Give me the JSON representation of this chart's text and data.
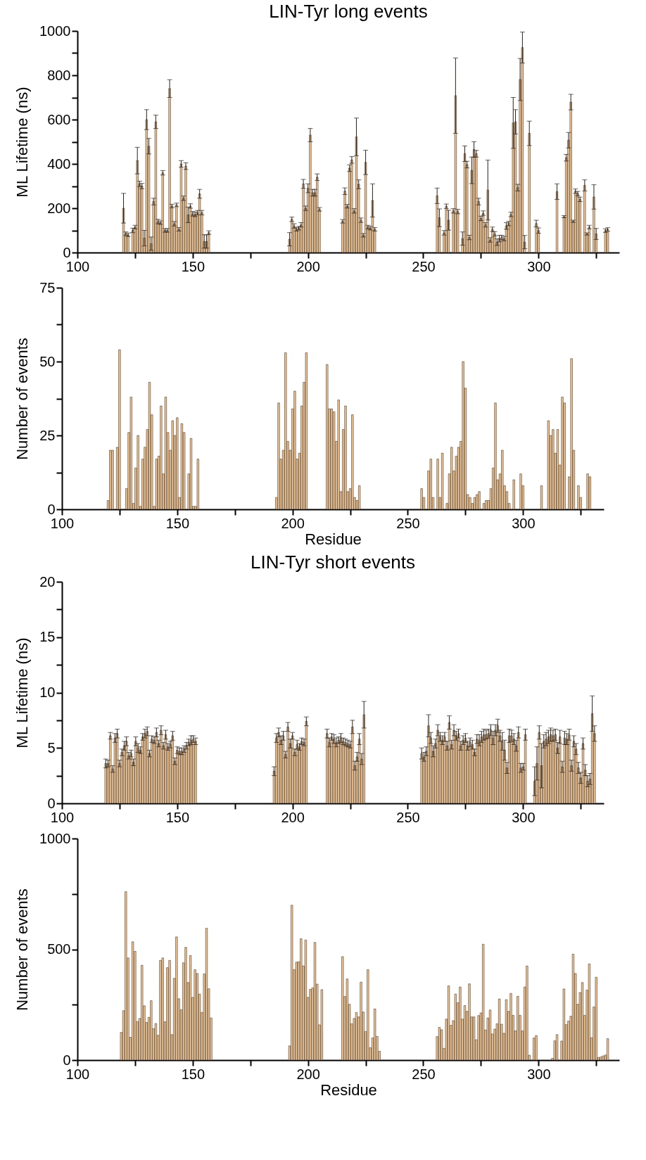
{
  "chart_data": [
    {
      "type": "bar",
      "title": "LIN-Tyr long events",
      "ylabel": "ML Lifetime (ns)",
      "color": "#f6c58e",
      "x": [
        120,
        121,
        122,
        124,
        125,
        126,
        127,
        128,
        129,
        130,
        131,
        132,
        133,
        134,
        135,
        136,
        137,
        138,
        139,
        140,
        141,
        142,
        143,
        144,
        145,
        146,
        147,
        148,
        149,
        150,
        151,
        152,
        153,
        154,
        155,
        156,
        157,
        192,
        193,
        194,
        195,
        196,
        197,
        198,
        199,
        200,
        201,
        202,
        203,
        204,
        205,
        215,
        216,
        217,
        218,
        219,
        220,
        221,
        222,
        223,
        224,
        225,
        226,
        227,
        228,
        229,
        256,
        257,
        259,
        260,
        261,
        263,
        264,
        265,
        267,
        268,
        269,
        270,
        271,
        272,
        273,
        274,
        275,
        276,
        277,
        278,
        279,
        280,
        281,
        282,
        283,
        284,
        285,
        286,
        287,
        288,
        289,
        290,
        291,
        292,
        293,
        294,
        296,
        299,
        300,
        308,
        311,
        312,
        313,
        314,
        315,
        316,
        317,
        318,
        320,
        321,
        322,
        324,
        325,
        329,
        330
      ],
      "values": [
        200,
        85,
        80,
        100,
        115,
        415,
        310,
        300,
        65,
        600,
        480,
        40,
        230,
        590,
        140,
        135,
        360,
        100,
        100,
        740,
        210,
        130,
        215,
        105,
        400,
        245,
        390,
        170,
        210,
        175,
        172,
        180,
        265,
        180,
        50,
        50,
        90,
        60,
        150,
        120,
        105,
        110,
        125,
        310,
        200,
        290,
        530,
        270,
        270,
        340,
        195,
        141,
        277,
        209,
        381,
        418,
        188,
        522,
        308,
        146,
        78,
        407,
        115,
        110,
        235,
        105,
        256,
        157,
        89,
        209,
        146,
        188,
        708,
        185,
        63,
        446,
        397,
        68,
        371,
        465,
        446,
        230,
        154,
        178,
        125,
        282,
        57,
        105,
        84,
        47,
        63,
        68,
        63,
        120,
        131,
        172,
        585,
        590,
        293,
        781,
        925,
        47,
        538,
        131,
        99,
        275,
        162,
        428,
        507,
        679,
        141,
        277,
        266,
        240,
        303,
        84,
        115,
        251,
        84,
        99,
        104
      ],
      "errors": [
        67,
        8,
        8,
        10,
        8,
        60,
        12,
        12,
        35,
        45,
        35,
        30,
        15,
        30,
        10,
        8,
        10,
        8,
        8,
        40,
        8,
        10,
        8,
        8,
        15,
        10,
        15,
        35,
        10,
        10,
        10,
        10,
        20,
        10,
        30,
        30,
        8,
        30,
        10,
        10,
        8,
        8,
        10,
        20,
        10,
        20,
        30,
        15,
        15,
        15,
        8,
        8,
        15,
        8,
        15,
        15,
        10,
        85,
        20,
        10,
        8,
        55,
        8,
        8,
        75,
        8,
        35,
        40,
        10,
        10,
        45,
        10,
        170,
        10,
        30,
        35,
        15,
        10,
        60,
        35,
        15,
        15,
        10,
        10,
        10,
        135,
        10,
        10,
        10,
        15,
        15,
        10,
        10,
        15,
        10,
        10,
        115,
        55,
        15,
        95,
        70,
        30,
        55,
        15,
        12,
        35,
        5,
        15,
        35,
        35,
        5,
        10,
        10,
        10,
        25,
        5,
        8,
        55,
        25,
        8,
        8
      ],
      "xlim": [
        100,
        335
      ],
      "xticks": [
        100,
        {
          "value": 125,
          "label": null
        },
        150,
        {
          "value": 175,
          "label": null
        },
        200,
        {
          "value": 225,
          "label": null
        },
        250,
        {
          "value": 275,
          "label": null
        },
        300,
        {
          "value": 325,
          "label": null
        }
      ],
      "ylim": [
        0,
        1000
      ],
      "yticks": [
        0,
        {
          "value": 100,
          "label": null
        },
        200,
        {
          "value": 300,
          "label": null
        },
        400,
        {
          "value": 500,
          "label": null
        },
        600,
        {
          "value": 700,
          "label": null
        },
        800,
        {
          "value": 900,
          "label": null
        },
        1000
      ]
    },
    {
      "type": "bar",
      "xlabel": "Residue",
      "ylabel": "Number of events",
      "color": "#f6c58e",
      "x": [
        120,
        121,
        122,
        124,
        125,
        128,
        129,
        130,
        131,
        132,
        133,
        134,
        135,
        136,
        137,
        138,
        139,
        140,
        141,
        142,
        143,
        144,
        145,
        146,
        147,
        148,
        149,
        150,
        151,
        152,
        153,
        155,
        156,
        157,
        158,
        159,
        193,
        194,
        195,
        196,
        197,
        198,
        199,
        200,
        201,
        202,
        203,
        204,
        205,
        206,
        215,
        216,
        217,
        218,
        219,
        220,
        221,
        222,
        223,
        224,
        225,
        226,
        227,
        228,
        229,
        256,
        257,
        259,
        260,
        261,
        263,
        264,
        265,
        267,
        268,
        269,
        270,
        271,
        272,
        273,
        274,
        275,
        276,
        277,
        278,
        279,
        280,
        281,
        283,
        284,
        285,
        286,
        287,
        288,
        289,
        290,
        291,
        292,
        293,
        294,
        296,
        299,
        300,
        308,
        311,
        312,
        313,
        314,
        315,
        316,
        317,
        318,
        320,
        321,
        322,
        324,
        325,
        328,
        329
      ],
      "values": [
        3,
        20,
        20,
        21,
        54,
        7,
        26,
        38,
        2,
        14,
        25,
        1,
        17,
        21,
        27,
        43,
        32,
        1,
        17,
        18,
        35,
        12,
        38,
        26,
        20,
        30,
        25,
        31,
        4,
        29,
        26,
        12,
        24,
        1,
        1,
        17,
        4,
        36,
        17,
        20,
        53,
        23,
        20,
        34,
        40,
        17,
        19,
        35,
        43,
        53,
        49,
        34,
        34,
        33,
        23,
        37,
        6,
        27,
        35,
        6,
        7,
        32,
        4,
        3,
        8,
        7,
        4,
        13,
        17,
        4,
        17,
        4,
        19,
        2,
        12,
        21,
        13,
        18,
        21,
        23,
        50,
        41,
        5,
        4,
        2,
        4,
        5,
        6,
        2,
        3,
        3,
        7,
        14,
        36,
        10,
        12,
        20,
        8,
        6,
        2,
        10,
        12,
        8,
        8,
        30,
        25,
        27,
        19,
        27,
        15,
        38,
        36,
        11,
        51,
        20,
        8,
        4,
        12,
        11
      ],
      "xlim": [
        100,
        335
      ],
      "xticks": [
        100,
        {
          "value": 125,
          "label": null
        },
        150,
        {
          "value": 175,
          "label": null
        },
        200,
        {
          "value": 225,
          "label": null
        },
        250,
        {
          "value": 275,
          "label": null
        },
        300,
        {
          "value": 325,
          "label": null
        }
      ],
      "ylim": [
        0,
        75
      ],
      "yticks": [
        0,
        {
          "value": 12.5,
          "label": null
        },
        25,
        {
          "value": 37.5,
          "label": null
        },
        50,
        {
          "value": 62.5,
          "label": null
        },
        75
      ]
    },
    {
      "type": "bar",
      "title": "LIN-Tyr short events",
      "ylabel": "ML Lifetime (ns)",
      "color": "#f6c58e",
      "x": [
        119,
        120,
        121,
        122,
        123,
        124,
        125,
        126,
        127,
        128,
        129,
        130,
        131,
        132,
        133,
        134,
        135,
        136,
        137,
        138,
        139,
        140,
        141,
        142,
        143,
        144,
        145,
        146,
        147,
        148,
        149,
        150,
        151,
        152,
        153,
        154,
        155,
        156,
        157,
        158,
        192,
        193,
        194,
        195,
        196,
        197,
        198,
        199,
        200,
        201,
        202,
        203,
        204,
        205,
        206,
        215,
        216,
        217,
        218,
        219,
        220,
        221,
        222,
        223,
        224,
        225,
        226,
        227,
        228,
        229,
        230,
        231,
        256,
        257,
        258,
        259,
        260,
        261,
        262,
        263,
        264,
        265,
        266,
        267,
        268,
        269,
        270,
        271,
        272,
        273,
        274,
        275,
        276,
        277,
        278,
        279,
        280,
        281,
        282,
        283,
        284,
        285,
        286,
        287,
        288,
        289,
        290,
        291,
        292,
        293,
        294,
        295,
        296,
        297,
        298,
        299,
        300,
        301,
        305,
        306,
        307,
        308,
        309,
        310,
        311,
        312,
        313,
        314,
        315,
        316,
        317,
        318,
        319,
        320,
        321,
        322,
        323,
        324,
        325,
        326,
        327,
        328,
        329,
        330,
        331
      ],
      "values": [
        3.6,
        3.6,
        6.1,
        3.1,
        5.9,
        6.3,
        3.6,
        4.6,
        5.2,
        5.6,
        4.3,
        4.5,
        3.7,
        5.6,
        5,
        4.8,
        6,
        6.3,
        6.5,
        4.5,
        5.8,
        5.7,
        6.4,
        5.4,
        6.6,
        5.2,
        6.2,
        5.1,
        5.3,
        6.1,
        3.8,
        4.8,
        4.7,
        4.7,
        4.9,
        5.2,
        5.5,
        5.7,
        5.8,
        5.6,
        2.9,
        5.9,
        6.4,
        5.7,
        6.1,
        4.4,
        6.9,
        5.4,
        6.1,
        4.6,
        5.3,
        5.1,
        5.6,
        5.5,
        7.4,
        6.3,
        5.5,
        6,
        5.8,
        5.5,
        5.7,
        5.9,
        5.6,
        5.5,
        5.4,
        5.3,
        6.9,
        3.4,
        4.2,
        5.8,
        4,
        8,
        4.5,
        4.2,
        4.7,
        7,
        5.9,
        4.7,
        5.4,
        6.6,
        6,
        5.7,
        6,
        5.2,
        7.3,
        5.3,
        6.6,
        6.1,
        6.3,
        5.2,
        5.7,
        5.9,
        5.2,
        5.5,
        5.3,
        4.6,
        5.8,
        5.7,
        6,
        6.2,
        6.2,
        6.3,
        6.6,
        5.9,
        6.6,
        7,
        6.1,
        5.6,
        4.8,
        3.2,
        6.1,
        6.1,
        5.8,
        5.2,
        6.4,
        3.2,
        3.3,
        6.2,
        2,
        3.6,
        6.4,
        3.4,
        5.6,
        5.8,
        6,
        6.2,
        6.1,
        6.2,
        5,
        6,
        3.3,
        5.9,
        5.8,
        6.2,
        3.4,
        5.6,
        4.9,
        3.2,
        2.3,
        5.4,
        3,
        2,
        2.2,
        8.1,
        6.3
      ],
      "errors": [
        0.4,
        0.3,
        0.3,
        0.3,
        0.4,
        0.4,
        0.3,
        0.3,
        0.4,
        0.4,
        0.3,
        0.3,
        0.3,
        0.4,
        0.4,
        0.3,
        0.3,
        0.4,
        0.4,
        0.3,
        0.3,
        0.3,
        0.4,
        0.3,
        0.4,
        0.3,
        0.4,
        0.3,
        0.3,
        0.4,
        0.3,
        0.3,
        0.3,
        0.3,
        0.3,
        0.3,
        0.3,
        0.4,
        0.3,
        0.3,
        0.4,
        0.4,
        0.4,
        0.4,
        0.4,
        0.3,
        0.4,
        0.4,
        0.3,
        0.3,
        0.4,
        0.3,
        0.3,
        0.3,
        0.4,
        0.4,
        0.4,
        0.3,
        0.4,
        0.4,
        0.3,
        0.4,
        0.3,
        0.3,
        0.3,
        0.3,
        0.6,
        0.4,
        0.4,
        0.5,
        0.5,
        1.2,
        0.5,
        0.4,
        0.4,
        1,
        0.5,
        0.5,
        0.4,
        0.5,
        0.4,
        0.4,
        0.4,
        0.4,
        0.6,
        0.4,
        0.5,
        0.4,
        0.4,
        0.4,
        0.4,
        0.4,
        0.4,
        0.4,
        0.4,
        0.3,
        0.4,
        0.5,
        0.5,
        0.5,
        0.4,
        0.4,
        0.5,
        0.6,
        0.5,
        0.6,
        0.5,
        0.8,
        0.9,
        0.5,
        0.6,
        0.5,
        0.5,
        0.5,
        0.5,
        0.4,
        0.3,
        0.5,
        1.3,
        1.5,
        0.6,
        2,
        0.6,
        0.6,
        0.6,
        0.6,
        0.5,
        0.5,
        0.5,
        0.6,
        0.5,
        0.6,
        0.5,
        0.5,
        0.5,
        0.5,
        0.5,
        0.5,
        0.5,
        0.5,
        0.5,
        0.5,
        0.5,
        1.6,
        0.7
      ],
      "xlim": [
        100,
        335
      ],
      "xticks": [
        100,
        {
          "value": 125,
          "label": null
        },
        150,
        {
          "value": 175,
          "label": null
        },
        200,
        {
          "value": 225,
          "label": null
        },
        250,
        {
          "value": 275,
          "label": null
        },
        300,
        {
          "value": 325,
          "label": null
        }
      ],
      "ylim": [
        0,
        20
      ],
      "yticks": [
        0,
        {
          "value": 2.5,
          "label": null
        },
        5,
        {
          "value": 7.5,
          "label": null
        },
        10,
        {
          "value": 12.5,
          "label": null
        },
        15,
        {
          "value": 17.5,
          "label": null
        },
        20
      ]
    },
    {
      "type": "bar",
      "xlabel": "Residue",
      "ylabel": "Number of events",
      "color": "#f6c58e",
      "x": [
        119,
        120,
        121,
        122,
        123,
        124,
        125,
        126,
        127,
        128,
        129,
        130,
        131,
        132,
        133,
        134,
        135,
        136,
        137,
        138,
        139,
        140,
        141,
        142,
        143,
        144,
        145,
        146,
        147,
        148,
        149,
        150,
        151,
        152,
        153,
        154,
        155,
        156,
        157,
        158,
        192,
        193,
        194,
        195,
        196,
        197,
        198,
        199,
        200,
        201,
        202,
        203,
        204,
        205,
        206,
        215,
        216,
        217,
        218,
        219,
        220,
        221,
        222,
        223,
        224,
        225,
        226,
        227,
        228,
        229,
        230,
        231,
        256,
        257,
        258,
        259,
        260,
        261,
        262,
        263,
        264,
        265,
        266,
        267,
        268,
        269,
        270,
        271,
        272,
        273,
        274,
        275,
        276,
        277,
        278,
        279,
        280,
        281,
        282,
        283,
        284,
        285,
        286,
        287,
        288,
        289,
        290,
        291,
        292,
        293,
        294,
        295,
        296,
        298,
        299,
        306,
        307,
        308,
        310,
        311,
        312,
        313,
        314,
        315,
        316,
        317,
        318,
        319,
        320,
        321,
        322,
        323,
        324,
        325,
        326,
        327,
        328,
        329,
        330
      ],
      "values": [
        125,
        223,
        760,
        461,
        103,
        534,
        491,
        174,
        188,
        428,
        245,
        170,
        193,
        268,
        142,
        165,
        112,
        450,
        461,
        173,
        417,
        450,
        115,
        369,
        556,
        277,
        227,
        439,
        509,
        350,
        472,
        283,
        408,
        391,
        298,
        215,
        389,
        595,
        322,
        190,
        64,
        699,
        408,
        442,
        444,
        548,
        425,
        542,
        283,
        319,
        326,
        531,
        343,
        159,
        318,
        467,
        287,
        366,
        252,
        164,
        188,
        215,
        195,
        352,
        217,
        129,
        408,
        56,
        100,
        231,
        107,
        40,
        106,
        148,
        137,
        53,
        185,
        335,
        157,
        178,
        298,
        259,
        330,
        185,
        246,
        220,
        344,
        195,
        195,
        92,
        201,
        213,
        523,
        136,
        190,
        226,
        118,
        140,
        164,
        276,
        162,
        121,
        273,
        220,
        301,
        202,
        132,
        288,
        202,
        132,
        330,
        425,
        22,
        100,
        111,
        8,
        87,
        115,
        86,
        321,
        160,
        176,
        198,
        478,
        391,
        252,
        305,
        350,
        202,
        316,
        434,
        101,
        240,
        374,
        12,
        14,
        19,
        23,
        97
      ],
      "xlim": [
        100,
        335
      ],
      "xticks": [
        100,
        {
          "value": 125,
          "label": null
        },
        150,
        {
          "value": 175,
          "label": null
        },
        200,
        {
          "value": 225,
          "label": null
        },
        250,
        {
          "value": 275,
          "label": null
        },
        300,
        {
          "value": 325,
          "label": null
        }
      ],
      "ylim": [
        0,
        1000
      ],
      "yticks": [
        0,
        {
          "value": 250,
          "label": null
        },
        500,
        {
          "value": 750,
          "label": null
        },
        1000
      ]
    }
  ]
}
